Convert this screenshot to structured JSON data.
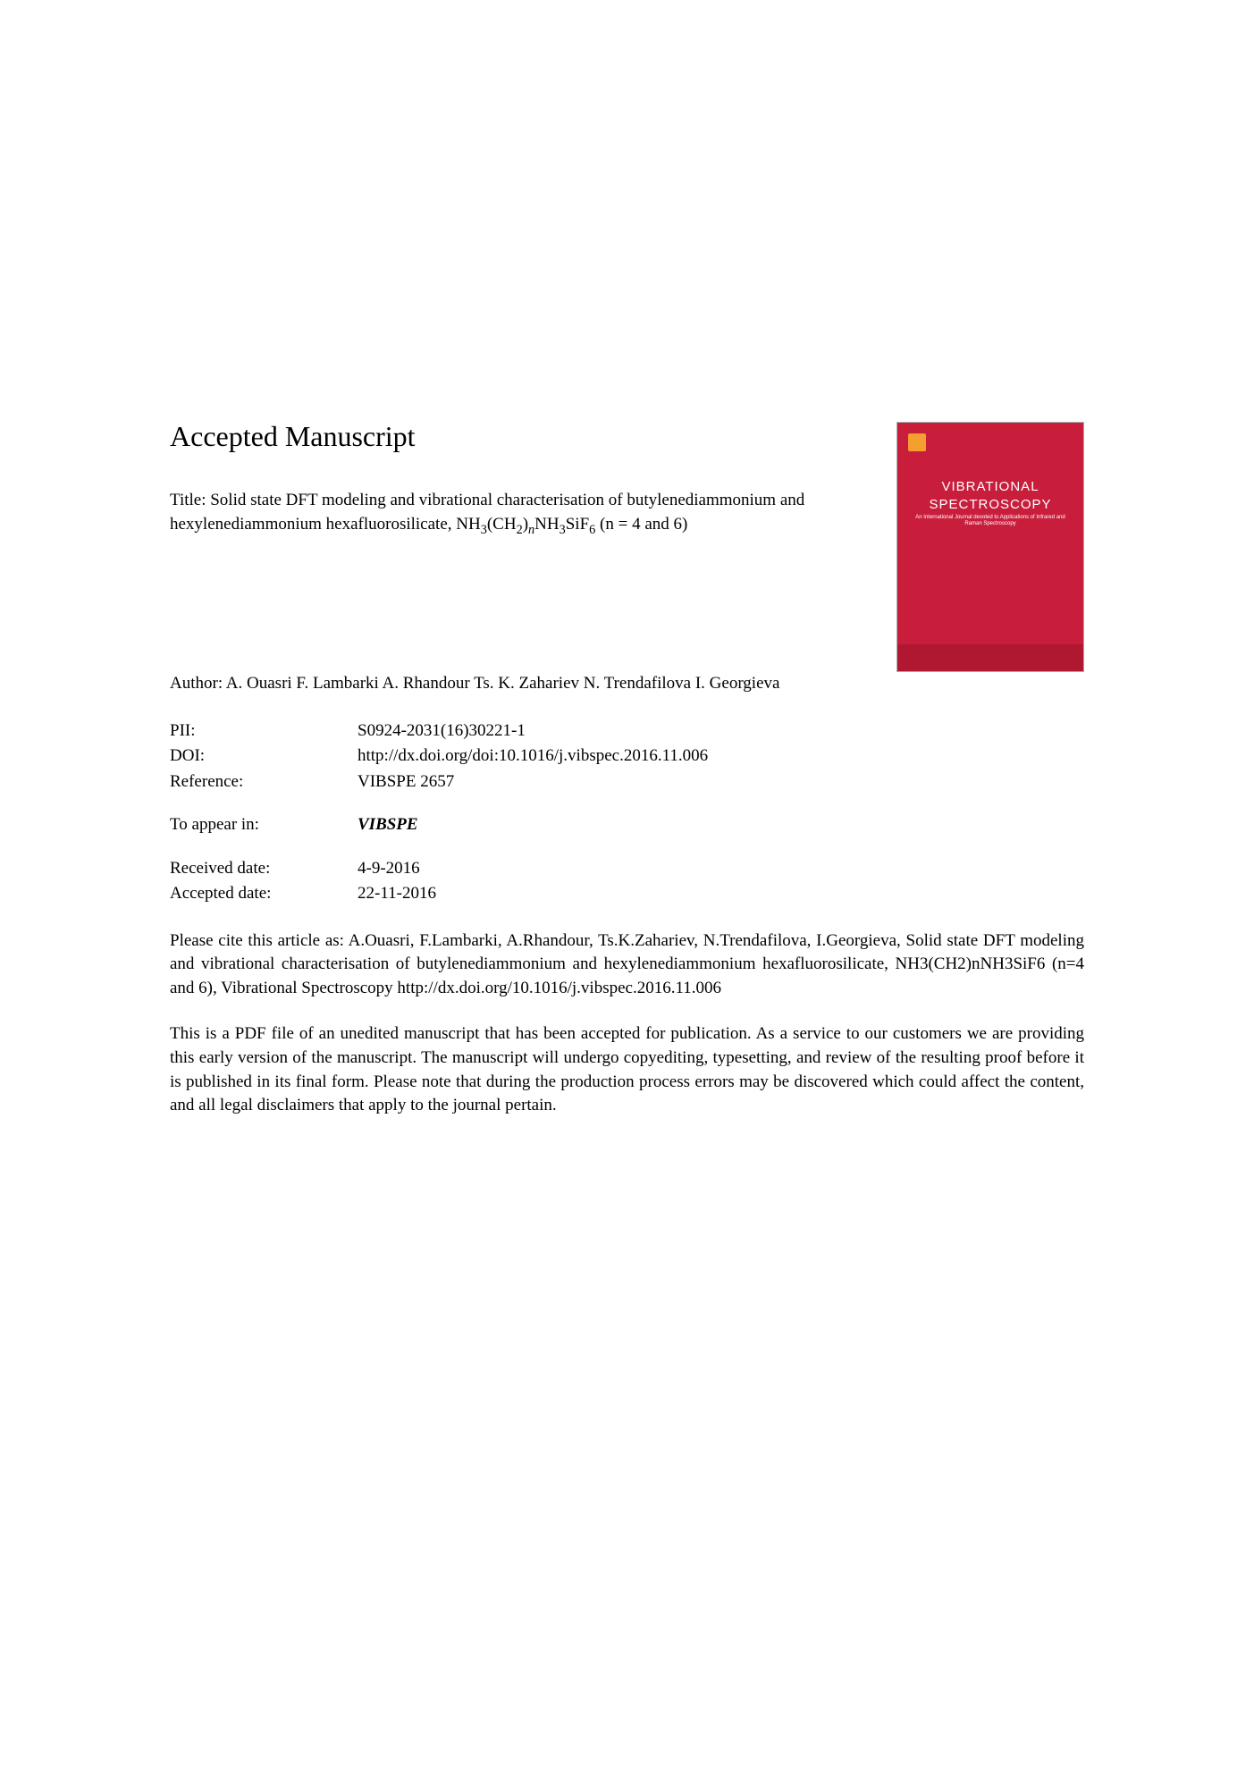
{
  "heading": "Accepted Manuscript",
  "journal_cover": {
    "title_line1": "VIBRATIONAL",
    "title_line2": "SPECTROSCOPY",
    "subtitle": "An International Journal devoted to Applications of Infrared and Raman Spectroscopy"
  },
  "title_prefix": "Title: Solid state DFT modeling and vibrational characterisation of butylenediammonium and hexylenediammonium hexafluorosilicate, NH",
  "title_formula_parts": {
    "sub1": "3",
    "part2": "(CH",
    "sub2": "2",
    "part3": ")",
    "sub3": "n",
    "part4": "NH",
    "sub4": "3",
    "part5": "SiF",
    "sub5": "6",
    "part6": " (n = 4 and 6)"
  },
  "author": "Author: A. Ouasri F. Lambarki A. Rhandour Ts. K. Zahariev N. Trendafilova I. Georgieva",
  "metadata": {
    "pii_label": "PII:",
    "pii_value": "S0924-2031(16)30221-1",
    "doi_label": "DOI:",
    "doi_value": "http://dx.doi.org/doi:10.1016/j.vibspec.2016.11.006",
    "reference_label": "Reference:",
    "reference_value": "VIBSPE 2657",
    "appear_label": "To appear in:",
    "appear_value": "VIBSPE",
    "received_label": "Received date:",
    "received_value": "4-9-2016",
    "accepted_label": "Accepted date:",
    "accepted_value": "22-11-2016"
  },
  "citation": "Please cite this article as: A.Ouasri, F.Lambarki, A.Rhandour, Ts.K.Zahariev, N.Trendafilova, I.Georgieva, Solid state DFT modeling and vibrational characterisation of butylenediammonium and hexylenediammonium hexafluorosilicate, NH3(CH2)nNH3SiF6 (n=4 and 6), Vibrational Spectroscopy http://dx.doi.org/10.1016/j.vibspec.2016.11.006",
  "disclaimer": "This is a PDF file of an unedited manuscript that has been accepted for publication. As a service to our customers we are providing this early version of the manuscript. The manuscript will undergo copyediting, typesetting, and review of the resulting proof before it is published in its final form. Please note that during the production process errors may be discovered which could affect the content, and all legal disclaimers that apply to the journal pertain."
}
